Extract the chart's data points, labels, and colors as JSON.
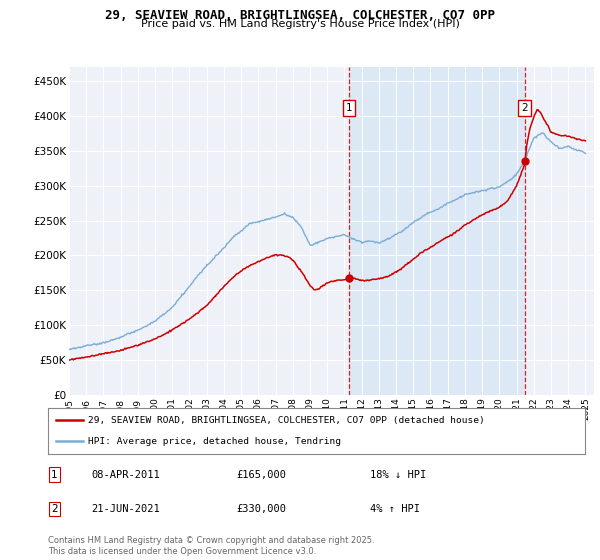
{
  "title_line1": "29, SEAVIEW ROAD, BRIGHTLINGSEA, COLCHESTER, CO7 0PP",
  "title_line2": "Price paid vs. HM Land Registry's House Price Index (HPI)",
  "background_color": "#ffffff",
  "plot_bg_color": "#eef2f8",
  "shaded_region_color": "#dce8f5",
  "red_line_label": "29, SEAVIEW ROAD, BRIGHTLINGSEA, COLCHESTER, CO7 0PP (detached house)",
  "blue_line_label": "HPI: Average price, detached house, Tendring",
  "annotation1_date": "08-APR-2011",
  "annotation1_price": "£165,000",
  "annotation1_hpi": "18% ↓ HPI",
  "annotation2_date": "21-JUN-2021",
  "annotation2_price": "£330,000",
  "annotation2_hpi": "4% ↑ HPI",
  "footnote": "Contains HM Land Registry data © Crown copyright and database right 2025.\nThis data is licensed under the Open Government Licence v3.0.",
  "ylim_min": 0,
  "ylim_max": 470000,
  "yticks": [
    0,
    50000,
    100000,
    150000,
    200000,
    250000,
    300000,
    350000,
    400000,
    450000
  ],
  "ytick_labels": [
    "£0",
    "£50K",
    "£100K",
    "£150K",
    "£200K",
    "£250K",
    "£300K",
    "£350K",
    "£400K",
    "£450K"
  ],
  "xtick_years": [
    1995,
    1996,
    1997,
    1998,
    1999,
    2000,
    2001,
    2002,
    2003,
    2004,
    2005,
    2006,
    2007,
    2008,
    2009,
    2010,
    2011,
    2012,
    2013,
    2014,
    2015,
    2016,
    2017,
    2018,
    2019,
    2020,
    2021,
    2022,
    2023,
    2024,
    2025
  ],
  "marker1_x": 2011.27,
  "marker1_y": 165000,
  "marker2_x": 2021.47,
  "marker2_y": 330000,
  "red_color": "#cc0000",
  "blue_color": "#7aadd4",
  "xlim_min": 1995,
  "xlim_max": 2025.5
}
